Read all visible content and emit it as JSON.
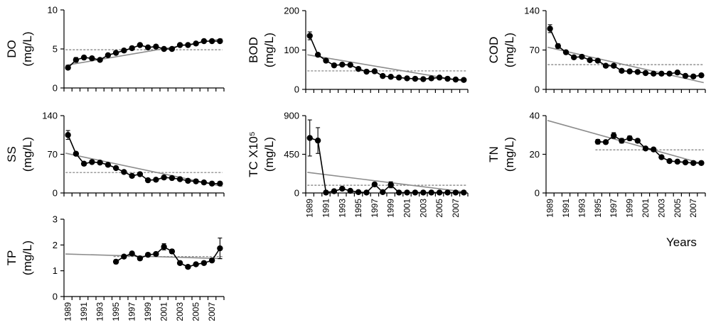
{
  "x_label": "Years",
  "chart_data": [
    {
      "type": "line",
      "name": "DO",
      "ylabel_main": "DO",
      "ylabel_unit": "(mg/L)",
      "ylim": [
        0,
        10
      ],
      "yticks": [
        "0",
        "5",
        "10"
      ],
      "x": [
        1989,
        1990,
        1991,
        1992,
        1993,
        1994,
        1995,
        1996,
        1997,
        1998,
        1999,
        2000,
        2001,
        2002,
        2003,
        2004,
        2005,
        2006,
        2007,
        2008
      ],
      "values": [
        2.6,
        3.6,
        3.9,
        3.8,
        3.6,
        4.2,
        4.5,
        4.8,
        5.1,
        5.5,
        5.2,
        5.3,
        5.0,
        5.0,
        5.5,
        5.5,
        5.7,
        6.0,
        6.0,
        6.0
      ],
      "errors": [
        0.2,
        0.3,
        0.2,
        0.2,
        0.2,
        0.2,
        0.2,
        0.2,
        0.2,
        0.2,
        0.2,
        0.2,
        0.2,
        0.2,
        0.2,
        0.2,
        0.2,
        0.2,
        0.2,
        0.2
      ],
      "trend": [
        2.9,
        6.3
      ],
      "mean": 4.9,
      "xticks": []
    },
    {
      "type": "line",
      "name": "BOD",
      "ylabel_main": "BOD",
      "ylabel_unit": "(mg/L)",
      "ylim": [
        0,
        200
      ],
      "yticks": [
        "0",
        "100",
        "200"
      ],
      "x": [
        1989,
        1990,
        1991,
        1992,
        1993,
        1994,
        1995,
        1996,
        1997,
        1998,
        1999,
        2000,
        2001,
        2002,
        2003,
        2004,
        2005,
        2006,
        2007,
        2008
      ],
      "values": [
        136,
        88,
        73,
        61,
        63,
        62,
        52,
        45,
        46,
        34,
        32,
        30,
        28,
        27,
        26,
        28,
        30,
        27,
        25,
        24
      ],
      "errors": [
        10,
        4,
        3,
        3,
        3,
        3,
        3,
        3,
        3,
        2,
        2,
        2,
        2,
        2,
        2,
        2,
        2,
        2,
        2,
        2
      ],
      "trend": [
        88,
        20
      ],
      "mean": 47,
      "xticks": []
    },
    {
      "type": "line",
      "name": "COD",
      "ylabel_main": "COD",
      "ylabel_unit": "(mg/L)",
      "ylim": [
        0,
        140
      ],
      "yticks": [
        "0",
        "70",
        "140"
      ],
      "x": [
        1989,
        1990,
        1991,
        1992,
        1993,
        1994,
        1995,
        1996,
        1997,
        1998,
        1999,
        2000,
        2001,
        2002,
        2003,
        2004,
        2005,
        2006,
        2007,
        2008
      ],
      "values": [
        108,
        77,
        66,
        57,
        58,
        52,
        51,
        42,
        42,
        33,
        32,
        31,
        29,
        28,
        28,
        28,
        30,
        24,
        23,
        25
      ],
      "errors": [
        7,
        4,
        3,
        2,
        2,
        2,
        2,
        2,
        2,
        2,
        2,
        2,
        2,
        2,
        2,
        2,
        2,
        2,
        2,
        2
      ],
      "trend": [
        75,
        12
      ],
      "mean": 44,
      "xticks": []
    },
    {
      "type": "line",
      "name": "SS",
      "ylabel_main": "SS",
      "ylabel_unit": "(mg/L)",
      "ylim": [
        0,
        140
      ],
      "yticks": [
        "0",
        "70",
        "140"
      ],
      "x": [
        1989,
        1990,
        1991,
        1992,
        1993,
        1994,
        1995,
        1996,
        1997,
        1998,
        1999,
        2000,
        2001,
        2002,
        2003,
        2004,
        2005,
        2006,
        2007,
        2008
      ],
      "values": [
        105,
        71,
        53,
        56,
        55,
        51,
        45,
        38,
        31,
        34,
        23,
        24,
        28,
        27,
        25,
        22,
        21,
        19,
        17,
        17
      ],
      "errors": [
        8,
        3,
        3,
        2,
        2,
        2,
        2,
        2,
        2,
        2,
        2,
        2,
        2,
        2,
        2,
        2,
        2,
        2,
        2,
        2
      ],
      "trend": [
        72,
        12
      ],
      "mean": 37,
      "xticks": []
    },
    {
      "type": "line",
      "name": "TC",
      "ylabel_main": "TC X10⁵",
      "ylabel_unit": "(mg/L)",
      "ylim": [
        0,
        900
      ],
      "yticks": [
        "0",
        "450",
        "900"
      ],
      "x": [
        1989,
        1990,
        1991,
        1992,
        1993,
        1994,
        1995,
        1996,
        1997,
        1998,
        1999,
        2000,
        2001,
        2002,
        2003,
        2004,
        2005,
        2006,
        2007,
        2008
      ],
      "values": [
        640,
        610,
        5,
        20,
        50,
        25,
        10,
        5,
        100,
        10,
        95,
        5,
        5,
        5,
        5,
        5,
        5,
        5,
        5,
        5
      ],
      "errors": [
        210,
        150,
        5,
        5,
        10,
        5,
        5,
        5,
        20,
        5,
        35,
        5,
        5,
        5,
        5,
        5,
        5,
        5,
        5,
        5
      ],
      "trend": [
        240,
        10
      ],
      "mean": 90,
      "xticks": [
        "1989",
        "1991",
        "1993",
        "1995",
        "1997",
        "1999",
        "2001",
        "2003",
        "2005",
        "2007"
      ]
    },
    {
      "type": "line",
      "name": "TN",
      "ylabel_main": "TN",
      "ylabel_unit": "(mg/L)",
      "ylim": [
        0,
        40
      ],
      "yticks": [
        "0",
        "20",
        "40"
      ],
      "x": [
        1995,
        1996,
        1997,
        1998,
        1999,
        2000,
        2001,
        2002,
        2003,
        2004,
        2005,
        2006,
        2007,
        2008
      ],
      "values": [
        26.5,
        26.3,
        29.7,
        27.0,
        28.3,
        27.0,
        23.0,
        22.5,
        18.5,
        16.5,
        16.2,
        15.8,
        15.5,
        15.5
      ],
      "errors": [
        1.2,
        1.0,
        1.5,
        1.2,
        1.2,
        1.0,
        0.8,
        0.8,
        0.6,
        0.6,
        0.5,
        0.5,
        0.5,
        0.5
      ],
      "trend": [
        37.5,
        15.0
      ],
      "mean": 22.3,
      "xticks": [
        "1989",
        "1991",
        "1993",
        "1995",
        "1997",
        "1999",
        "2001",
        "2003",
        "2005",
        "2007"
      ]
    },
    {
      "type": "line",
      "name": "TP",
      "ylabel_main": "TP",
      "ylabel_unit": "(mg/L)",
      "ylim": [
        0,
        3
      ],
      "yticks": [
        "0",
        "1",
        "2",
        "3"
      ],
      "x": [
        1995,
        1996,
        1997,
        1998,
        1999,
        2000,
        2001,
        2002,
        2003,
        2004,
        2005,
        2006,
        2007,
        2008
      ],
      "values": [
        1.35,
        1.55,
        1.67,
        1.48,
        1.62,
        1.65,
        1.93,
        1.75,
        1.3,
        1.15,
        1.25,
        1.3,
        1.4,
        1.87
      ],
      "errors": [
        0.08,
        0.05,
        0.05,
        0.05,
        0.07,
        0.07,
        0.12,
        0.08,
        0.05,
        0.05,
        0.05,
        0.05,
        0.07,
        0.4
      ],
      "trend": [
        1.65,
        1.47
      ],
      "mean": 1.55,
      "xticks": [
        "1989",
        "1991",
        "1993",
        "1995",
        "1997",
        "1999",
        "2001",
        "2003",
        "2005",
        "2007"
      ]
    }
  ]
}
